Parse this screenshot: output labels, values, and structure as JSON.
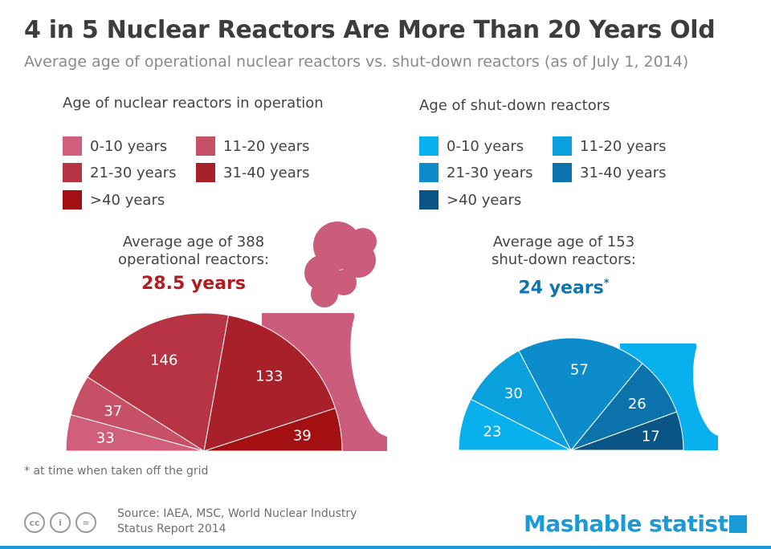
{
  "header": {
    "title": "4 in 5 Nuclear Reactors Are More Than 20 Years Old",
    "subtitle": "Average age of operational nuclear reactors vs. shut-down reactors (as of July 1, 2014)"
  },
  "operational": {
    "section_title": "Age of nuclear reactors in operation",
    "legend": [
      "0-10 years",
      "11-20 years",
      "21-30 years",
      "31-40 years",
      ">40 years"
    ],
    "colors": [
      "#cf5f7b",
      "#c65065",
      "#b63443",
      "#a8202a",
      "#a31014"
    ],
    "avg_line1": "Average age of 388",
    "avg_line2": "operational reactors:",
    "avg_value": "28.5 years",
    "value_color": "#b01c22",
    "tower_color": "#cc5c7c"
  },
  "shutdown": {
    "section_title": "Age of shut-down reactors",
    "legend": [
      "0-10 years",
      "11-20 years",
      "21-30 years",
      "31-40 years",
      ">40 years"
    ],
    "colors": [
      "#08b0ee",
      "#0aa0de",
      "#0c8cca",
      "#0b72ab",
      "#0a5585"
    ],
    "avg_line1": "Average age of 153",
    "avg_line2": "shut-down reactors:",
    "avg_value": "24 years",
    "avg_marker": "*",
    "value_color": "#0d76b0",
    "tower_color": "#08b0ee"
  },
  "chart_data": [
    {
      "type": "pie",
      "variant": "semicircle",
      "categories": [
        "0-10 years",
        "11-20 years",
        "21-30 years",
        "31-40 years",
        ">40 years"
      ],
      "values": [
        33,
        37,
        146,
        133,
        39
      ],
      "total": 388
    },
    {
      "type": "pie",
      "variant": "semicircle",
      "categories": [
        "0-10 years",
        "11-20 years",
        "21-30 years",
        "31-40 years",
        ">40 years"
      ],
      "values": [
        23,
        30,
        57,
        26,
        17
      ],
      "total": 153
    }
  ],
  "footnote": "*  at time when taken off the grid",
  "footer": {
    "source_line1": "Source:  IAEA, MSC, World Nuclear Industry",
    "source_line2": "Status Report 2014",
    "cc_icons": [
      "cc-icon",
      "by-icon",
      "nd-icon"
    ],
    "cc_labels": [
      "cc",
      "i",
      "="
    ],
    "brand1": "Mashable",
    "brand2": "statista",
    "brand_color": "#1a9ad7"
  }
}
